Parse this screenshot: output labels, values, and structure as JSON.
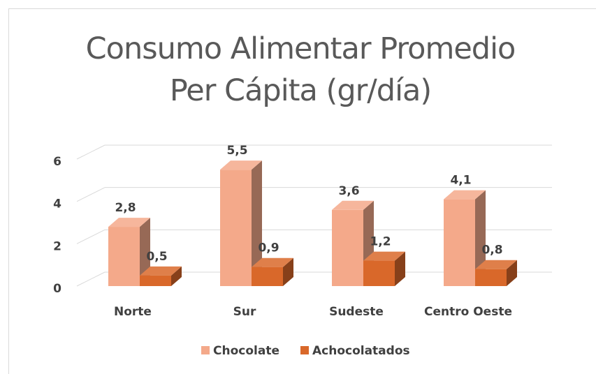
{
  "chart_data": {
    "type": "bar3d",
    "title": "Consumo Alimentar Promedio Per Cápita (gr/día)",
    "categories": [
      "Norte",
      "Sur",
      "Sudeste",
      "Centro Oeste"
    ],
    "series": [
      {
        "name": "Chocolate",
        "color": "#f4a98a",
        "values": [
          2.8,
          5.5,
          3.6,
          4.1
        ],
        "value_labels": [
          "2,8",
          "5,5",
          "3,6",
          "4,1"
        ]
      },
      {
        "name": "Achocolatados",
        "color": "#d9682a",
        "values": [
          0.5,
          0.9,
          1.2,
          0.8
        ],
        "value_labels": [
          "0,5",
          "0,9",
          "1,2",
          "0,8"
        ]
      }
    ],
    "ylim": [
      0,
      6
    ],
    "yticks": [
      0,
      2,
      4,
      6
    ],
    "grid": true,
    "legend": "bottom"
  }
}
